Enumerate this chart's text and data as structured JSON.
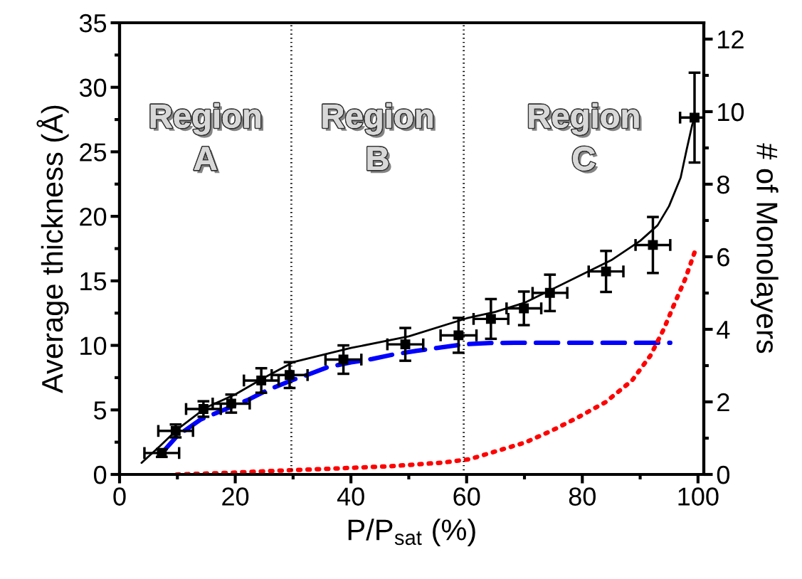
{
  "chart_data": {
    "type": "line",
    "xlabel": "P/P$_{sat}$ (%)",
    "ylabel": "Average thickness (Å)",
    "y2label": "# of Monolayers",
    "xlim": [
      0,
      101
    ],
    "ylim": [
      0,
      35
    ],
    "y2lim": [
      0,
      12.45
    ],
    "xticks": [
      0,
      {
        "value": 10,
        "label": null
      },
      20,
      {
        "value": 30,
        "label": null
      },
      40,
      {
        "value": 50,
        "label": null
      },
      60,
      {
        "value": 70,
        "label": null
      },
      80,
      {
        "value": 90,
        "label": null
      },
      100
    ],
    "yticks": [
      0,
      {
        "value": 2.5,
        "label": null
      },
      5,
      {
        "value": 7.5,
        "label": null
      },
      10,
      {
        "value": 12.5,
        "label": null
      },
      15,
      {
        "value": 17.5,
        "label": null
      },
      20,
      {
        "value": 22.5,
        "label": null
      },
      25,
      {
        "value": 27.5,
        "label": null
      },
      30,
      {
        "value": 32.5,
        "label": null
      },
      35
    ],
    "y2ticks": [
      0,
      {
        "value": 1,
        "label": null
      },
      2,
      {
        "value": 3,
        "label": null
      },
      4,
      {
        "value": 5,
        "label": null
      },
      6,
      {
        "value": 7,
        "label": null
      },
      8,
      {
        "value": 9,
        "label": null
      },
      10,
      {
        "value": 11,
        "label": null
      },
      12
    ],
    "grid": false,
    "legend": false,
    "ref_lines": [
      {
        "axis": "x",
        "value": 29.7,
        "label": null,
        "color": "#000000",
        "line_style": "dotted"
      },
      {
        "axis": "x",
        "value": 59.5,
        "label": null,
        "color": "#000000",
        "line_style": "dotted"
      }
    ],
    "annotations": [
      "Region\nA",
      "Region\nB",
      "Region\nC"
    ],
    "series": [
      {
        "color": "#0000ff",
        "line_style": "dashed",
        "marker": "none",
        "x": [
          7.2,
          10,
          14,
          17.9,
          22.3,
          25.6,
          29.8,
          32.6,
          35.9,
          40,
          43.7,
          47.4,
          51.4,
          54.6,
          59.5,
          64.2,
          68.3,
          95.2
        ],
        "values": [
          1.6,
          3.0,
          4.25,
          4.98,
          5.8,
          6.54,
          7.3,
          7.74,
          8.3,
          8.68,
          8.95,
          9.3,
          9.58,
          9.78,
          10.08,
          10.19,
          10.2,
          10.2
        ]
      },
      {
        "color": "#ff0000",
        "line_style": "dotted",
        "marker": "none",
        "x": [
          9.9,
          19.3,
          28.4,
          37.4,
          46.9,
          55.9,
          60.5,
          70.1,
          74.7,
          79.2,
          84,
          88.6,
          91.8,
          94.1,
          95.9,
          97.8,
          99.4
        ],
        "values": [
          0,
          0.13,
          0.31,
          0.46,
          0.64,
          0.92,
          1.18,
          2.47,
          3.39,
          4.41,
          5.6,
          7.28,
          9.23,
          11.28,
          13.2,
          15.16,
          17.2
        ]
      },
      {
        "color": "#000000",
        "line_style": "solid",
        "marker": "none",
        "x": [
          3.8,
          7,
          10,
          15,
          20,
          25,
          30,
          40,
          50,
          60,
          65,
          70,
          80,
          85,
          90,
          93,
          95,
          97,
          98,
          99,
          99.6
        ],
        "values": [
          0.9,
          2.2,
          3.5,
          5.2,
          6.2,
          7.5,
          8.7,
          9.8,
          10.7,
          12.1,
          12.6,
          13.3,
          15.5,
          16.6,
          18.1,
          19.3,
          20.8,
          23.0,
          25.1,
          27.1,
          27.9
        ]
      },
      {
        "type": "scatter",
        "color": "#000000",
        "marker": "square",
        "x": [
          7.3,
          9.7,
          14.5,
          19.3,
          24.5,
          29.4,
          38.7,
          49.4,
          58.6,
          64.2,
          69.9,
          74.4,
          84.1,
          92.2,
          99.4
        ],
        "values": [
          1.66,
          3.37,
          5.07,
          5.49,
          7.28,
          7.7,
          8.9,
          10.08,
          10.78,
          12.05,
          12.87,
          14.07,
          15.73,
          17.78,
          27.65
        ],
        "errors": [
          0.3,
          0.5,
          0.6,
          0.7,
          0.95,
          1.0,
          1.1,
          1.27,
          1.35,
          1.54,
          1.3,
          1.41,
          1.59,
          2.17,
          3.48
        ],
        "xerrors": [
          3,
          3,
          3,
          3.2,
          3,
          3.1,
          3.1,
          3.1,
          3.1,
          3,
          3,
          3,
          3,
          3,
          2.5
        ]
      }
    ]
  }
}
